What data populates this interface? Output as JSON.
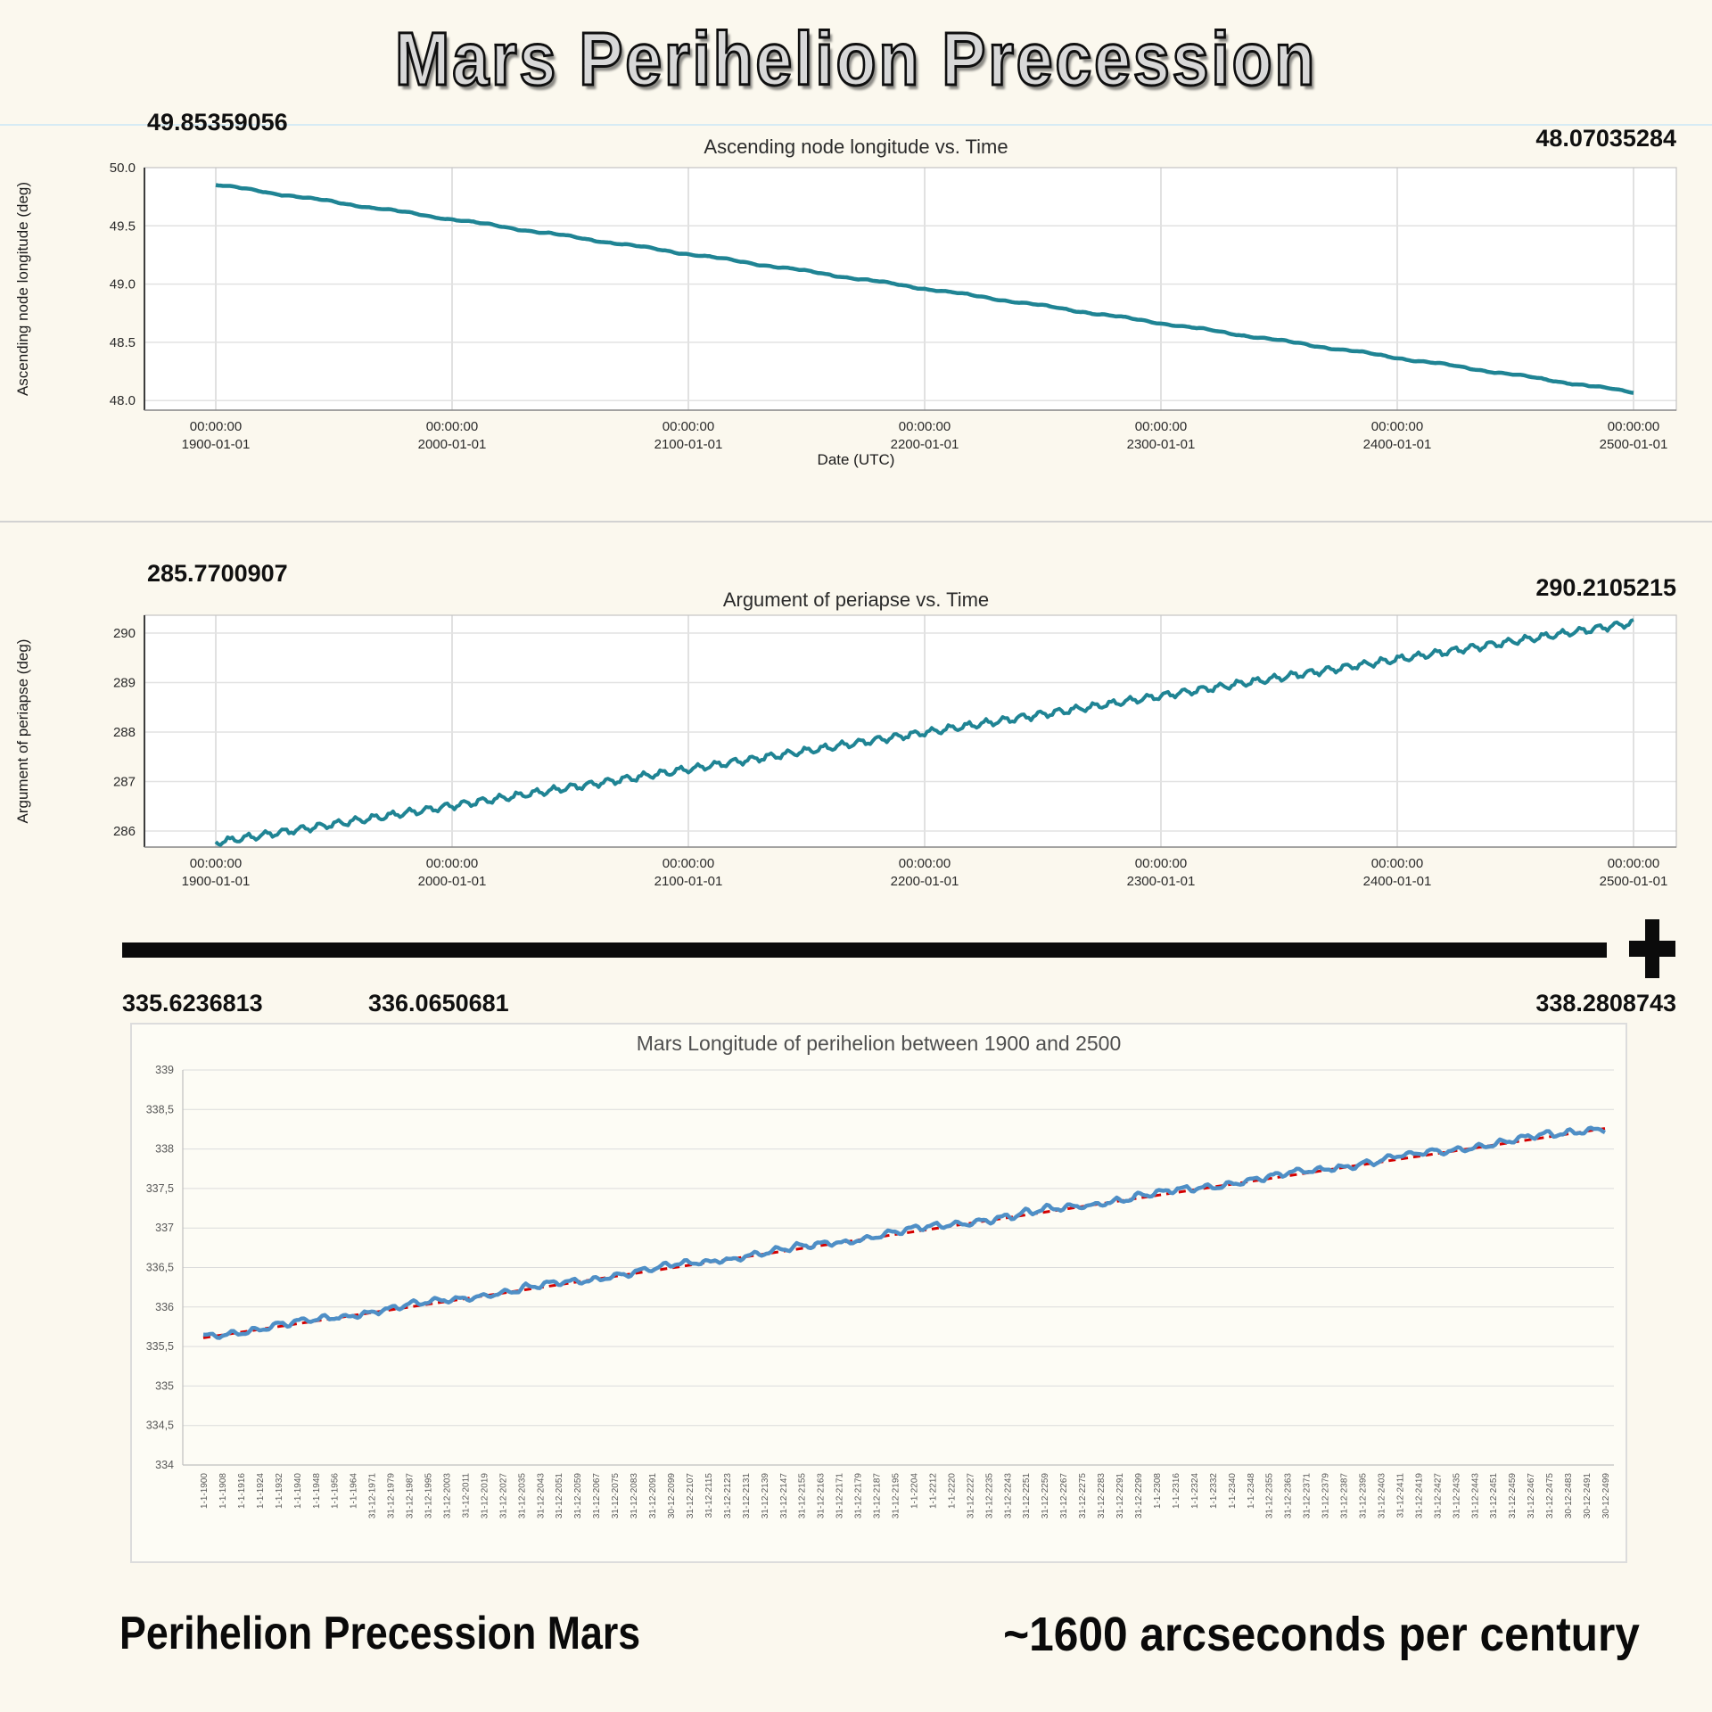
{
  "title": "Mars Perihelion Precession",
  "captions": {
    "left": "Perihelion Precession Mars",
    "right": "~1600 arcseconds per century"
  },
  "colors": {
    "teal_line": "#1f8494",
    "excel_blue": "#4f8fc6",
    "trend_red": "#d40000",
    "page_background": "#fbf8ee",
    "hairline_blue": "#d6ebf4"
  },
  "chart_data": [
    {
      "type": "line",
      "title": "Ascending node longitude vs. Time",
      "xlabel": "Date (UTC)",
      "ylabel": "Ascending node longitude (deg)",
      "start_label": "49.85359056",
      "end_label": "48.07035284",
      "x_range_years": [
        1900,
        2500
      ],
      "ylim": [
        47.92,
        50.0
      ],
      "grid": true,
      "legend": false,
      "y_ticks": [
        "50.0",
        "49.5",
        "49.0",
        "48.5",
        "48.0"
      ],
      "x_ticks": [
        {
          "time": "00:00:00",
          "date": "1900-01-01"
        },
        {
          "time": "00:00:00",
          "date": "2000-01-01"
        },
        {
          "time": "00:00:00",
          "date": "2100-01-01"
        },
        {
          "time": "00:00:00",
          "date": "2200-01-01"
        },
        {
          "time": "00:00:00",
          "date": "2300-01-01"
        },
        {
          "time": "00:00:00",
          "date": "2400-01-01"
        },
        {
          "time": "00:00:00",
          "date": "2500-01-01"
        }
      ],
      "series": [
        {
          "name": "Ascending node longitude",
          "color": "#1f8494",
          "width": 4.5,
          "start": 49.85359056,
          "end": 48.07035284,
          "osc": [
            {
              "amp": 0.006,
              "period": 34,
              "phase": 0.4
            },
            {
              "amp": 0.0035,
              "period": 8.4,
              "phase": 1.7
            }
          ],
          "noise": 0.0015,
          "seed": 7
        }
      ]
    },
    {
      "type": "line",
      "title": "Argument of periapse vs. Time",
      "xlabel": "",
      "ylabel": "Argument of periapse (deg)",
      "start_label": "285.7700907",
      "end_label": "290.2105215",
      "x_range_years": [
        1900,
        2500
      ],
      "ylim": [
        285.68,
        290.36
      ],
      "grid": true,
      "legend": false,
      "y_ticks": [
        "290",
        "289",
        "288",
        "287",
        "286"
      ],
      "x_ticks": [
        {
          "time": "00:00:00",
          "date": "1900-01-01"
        },
        {
          "time": "00:00:00",
          "date": "2000-01-01"
        },
        {
          "time": "00:00:00",
          "date": "2100-01-01"
        },
        {
          "time": "00:00:00",
          "date": "2200-01-01"
        },
        {
          "time": "00:00:00",
          "date": "2300-01-01"
        },
        {
          "time": "00:00:00",
          "date": "2400-01-01"
        },
        {
          "time": "00:00:00",
          "date": "2500-01-01"
        }
      ],
      "series": [
        {
          "name": "Argument of periapse",
          "color": "#1f8494",
          "width": 4,
          "start": 285.7700907,
          "end": 290.2105215,
          "osc": [
            {
              "amp": 0.062,
              "period": 7.62,
              "phase": 0.9
            },
            {
              "amp": 0.02,
              "period": 2.26,
              "phase": 2.2
            }
          ],
          "noise": 0.006,
          "seed": 11
        }
      ]
    },
    {
      "type": "line",
      "title": "Mars Longitude of perihelion between 1900 and 2500",
      "xlabel": "",
      "ylabel": "",
      "annotations": {
        "start_label": "335.6236813",
        "mid_label": "336.0650681",
        "end_label": "338.2808743"
      },
      "x_range_years": [
        1900,
        2500
      ],
      "ylim": [
        334,
        339
      ],
      "grid": true,
      "legend": false,
      "y_ticks": [
        "339",
        "338,5",
        "338",
        "337,5",
        "337",
        "336,5",
        "336",
        "335,5",
        "335",
        "334,5",
        "334"
      ],
      "x_labels": [
        "1-1-1900",
        "1-1-1908",
        "1-1-1916",
        "1-1-1924",
        "1-1-1932",
        "1-1-1940",
        "1-1-1948",
        "1-1-1956",
        "1-1-1964",
        "31-12-1971",
        "31-12-1979",
        "31-12-1987",
        "31-12-1995",
        "31-12-2003",
        "31-12-2011",
        "31-12-2019",
        "31-12-2027",
        "31-12-2035",
        "31-12-2043",
        "31-12-2051",
        "31-12-2059",
        "31-12-2067",
        "31-12-2075",
        "31-12-2083",
        "31-12-2091",
        "30-12-2099",
        "31-12-2107",
        "31-12-2115",
        "31-12-2123",
        "31-12-2131",
        "31-12-2139",
        "31-12-2147",
        "31-12-2155",
        "31-12-2163",
        "31-12-2171",
        "31-12-2179",
        "31-12-2187",
        "31-12-2195",
        "1-1-2204",
        "1-1-2212",
        "1-1-2220",
        "31-12-2227",
        "31-12-2235",
        "31-12-2243",
        "31-12-2251",
        "31-12-2259",
        "31-12-2267",
        "31-12-2275",
        "31-12-2283",
        "31-12-2291",
        "31-12-2299",
        "1-1-2308",
        "1-1-2316",
        "1-1-2324",
        "1-1-2332",
        "1-1-2340",
        "1-1-2348",
        "31-12-2355",
        "31-12-2363",
        "31-12-2371",
        "31-12-2379",
        "31-12-2387",
        "31-12-2395",
        "31-12-2403",
        "31-12-2411",
        "31-12-2419",
        "31-12-2427",
        "31-12-2435",
        "31-12-2443",
        "31-12-2451",
        "31-12-2459",
        "31-12-2467",
        "31-12-2475",
        "30-12-2483",
        "30-12-2491",
        "30-12-2499"
      ],
      "series": [
        {
          "name": "Longitude of perihelion",
          "color": "#4f8fc6",
          "width": 4.5,
          "start": 335.6236813,
          "end": 338.2808743,
          "osc": [
            {
              "amp": 0.034,
              "period": 9.7,
              "phase": 0.7
            },
            {
              "amp": 0.028,
              "period": 4.3,
              "phase": 2.5
            },
            {
              "amp": 0.02,
              "period": 53,
              "phase": 4.0
            }
          ],
          "noise": 0.02,
          "smooth": 1,
          "seed": 42
        },
        {
          "name": "Linear trend",
          "color": "#d40000",
          "width": 3,
          "dash": "8 6",
          "start": 335.61,
          "end": 338.26
        }
      ]
    }
  ]
}
